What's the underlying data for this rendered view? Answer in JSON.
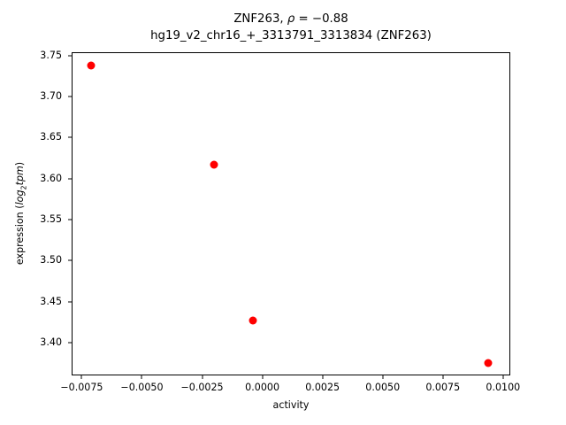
{
  "chart_data": {
    "type": "scatter",
    "title": "ZNF263, ρ = −0.88",
    "title_parts": {
      "prefix": "ZNF263, ",
      "rho": "ρ",
      "suffix": " = −0.88"
    },
    "subtitle": "hg19_v2_chr16_+_3313791_3313834 (ZNF263)",
    "rho": -0.88,
    "xlabel": "activity",
    "ylabel": "expression (log₂tpm)",
    "ylabel_parts": {
      "prefix": "expression (",
      "log": "log",
      "sub": "2",
      "var": "tpm",
      "suffix": ")"
    },
    "xlim": [
      -0.00792,
      0.0103
    ],
    "ylim": [
      3.36,
      3.754
    ],
    "x_ticks": [
      -0.0075,
      -0.005,
      -0.0025,
      0,
      0.0025,
      0.005,
      0.0075,
      0.01
    ],
    "x_tick_labels": [
      "−0.0075",
      "−0.0050",
      "−0.0025",
      "0.0000",
      "0.0025",
      "0.0050",
      "0.0075",
      "0.0100"
    ],
    "y_ticks": [
      3.75,
      3.7,
      3.65,
      3.6,
      3.55,
      3.5,
      3.45,
      3.4
    ],
    "y_tick_labels": [
      "3.75",
      "3.70",
      "3.65",
      "3.60",
      "3.55",
      "3.50",
      "3.45",
      "3.40"
    ],
    "grid": false,
    "legend": false,
    "series": [
      {
        "marker": "circle",
        "color": "#ff0000",
        "points": [
          {
            "x": -0.0071,
            "y": 3.738
          },
          {
            "x": -0.002,
            "y": 3.617
          },
          {
            "x": -0.0004,
            "y": 3.427
          },
          {
            "x": 0.0094,
            "y": 3.375
          }
        ]
      }
    ]
  },
  "style": {
    "background_color": "#ffffff",
    "axis_color": "#000000",
    "text_color": "#000000"
  }
}
